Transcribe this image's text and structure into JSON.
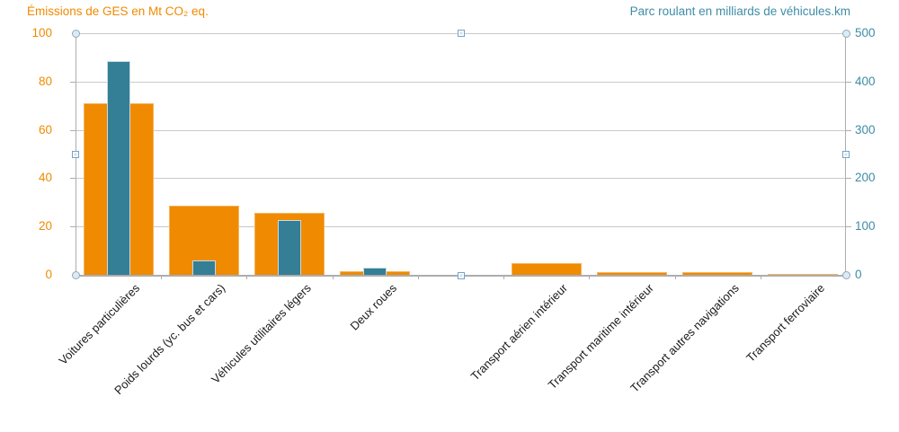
{
  "chart_data": {
    "type": "bar",
    "title_left": "Émissions de GES en Mt CO₂ eq.",
    "title_right": "Parc roulant en milliards de véhicules.km",
    "left_axis": {
      "ticks": [
        0,
        20,
        40,
        60,
        80,
        100
      ],
      "range": [
        0,
        100
      ],
      "color": "#F08A00"
    },
    "right_axis": {
      "ticks": [
        0,
        100,
        200,
        300,
        400,
        500
      ],
      "range": [
        0,
        500
      ],
      "color": "#3E8CA6"
    },
    "categories": [
      "Voitures particulières",
      "Poids lourds (yc. bus et cars)",
      "Véhicules utilitaires légers",
      "Deux roues",
      "",
      "Transport aérien intérieur",
      "Transport maritime intérieur",
      "Transport autres navigations",
      "Transport ferroviaire"
    ],
    "series": [
      {
        "name": "Émissions de GES en Mt CO₂ eq.",
        "axis": "left",
        "color": "#F08A00",
        "values": [
          71,
          28.5,
          25.5,
          1.5,
          null,
          5,
          1.2,
          1,
          0.3
        ]
      },
      {
        "name": "Parc roulant en milliards de véhicules.km",
        "axis": "right",
        "color": "#347E96",
        "values": [
          442,
          30,
          113,
          15,
          null,
          null,
          null,
          null,
          null
        ]
      }
    ],
    "grid": true,
    "legend": false,
    "colors": {
      "grid": "#C9C9C9",
      "axis_line": "#ADADAD",
      "category_label": "#1A1A1A"
    }
  },
  "editor": {
    "selection_handles_visible": true
  }
}
